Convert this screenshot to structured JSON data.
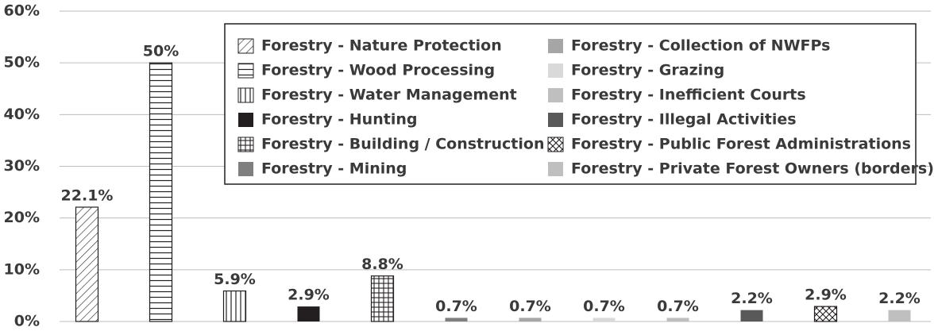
{
  "chart_data": {
    "type": "bar",
    "categories": [
      "Forestry - Nature Protection",
      "Forestry - Wood Processing",
      "Forestry - Water Management",
      "Forestry - Hunting",
      "Forestry - Building / Construction",
      "Forestry - Mining",
      "Forestry - Collection of NWFPs",
      "Forestry - Grazing",
      "Forestry - Inefficient Courts",
      "Forestry - Illegal Activities",
      "Forestry - Public Forest Administrations",
      "Forestry - Private Forest Owners (borders)"
    ],
    "values": [
      22.1,
      50,
      5.9,
      2.9,
      8.8,
      0.7,
      0.7,
      0.7,
      0.7,
      2.2,
      2.9,
      2.2
    ],
    "value_labels": [
      "22.1%",
      "50%",
      "5.9%",
      "2.9%",
      "8.8%",
      "0.7%",
      "0.7%",
      "0.7%",
      "0.7%",
      "2.2%",
      "2.9%",
      "2.2%"
    ],
    "colors": [
      "#ffffff",
      "#ffffff",
      "#ffffff",
      "#231f20",
      "#ffffff",
      "#7f7f7f",
      "#a6a6a6",
      "#d9d9d9",
      "#bfbfbf",
      "#595959",
      "#ffffff",
      "#bfbfbf"
    ],
    "hatches": [
      "diagonal",
      "horizontal",
      "vertical",
      null,
      "grid",
      null,
      null,
      null,
      null,
      null,
      "crosshatch",
      null
    ],
    "ylim": [
      0,
      60
    ],
    "yticks": [
      {
        "value": 0,
        "label": "0%"
      },
      {
        "value": 10,
        "label": "10%"
      },
      {
        "value": 20,
        "label": "20%"
      },
      {
        "value": 30,
        "label": "30%"
      },
      {
        "value": 40,
        "label": "40%"
      },
      {
        "value": 50,
        "label": "50%"
      },
      {
        "value": 60,
        "label": "60%"
      }
    ],
    "grid": true,
    "legend": "top-right"
  }
}
